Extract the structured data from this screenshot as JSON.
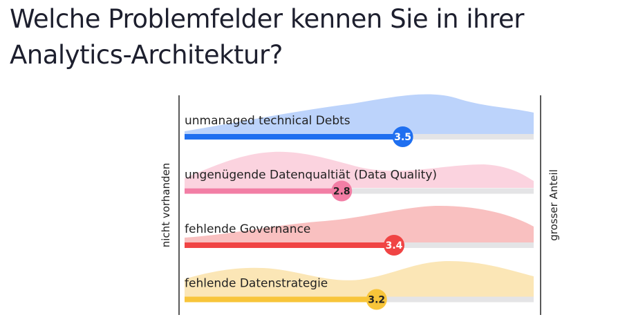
{
  "chart_data": {
    "type": "bar",
    "title": "Welche Problemfelder kennen Sie in ihrer Analytics-Architektur?",
    "categories": [
      "unmanaged technical Debts",
      "ungenügende Datenqualtiät (Data Quality)",
      "fehlende Governance",
      "fehlende Datenstrategie"
    ],
    "values": [
      3.5,
      2.8,
      3.4,
      3.2
    ],
    "colors": [
      "#1f6ff0",
      "#f27ea5",
      "#f04444",
      "#f8c53a"
    ],
    "xlim": [
      1,
      5
    ],
    "x_label_left": "nicht vorhanden",
    "x_label_right": "grosser Anteil"
  }
}
